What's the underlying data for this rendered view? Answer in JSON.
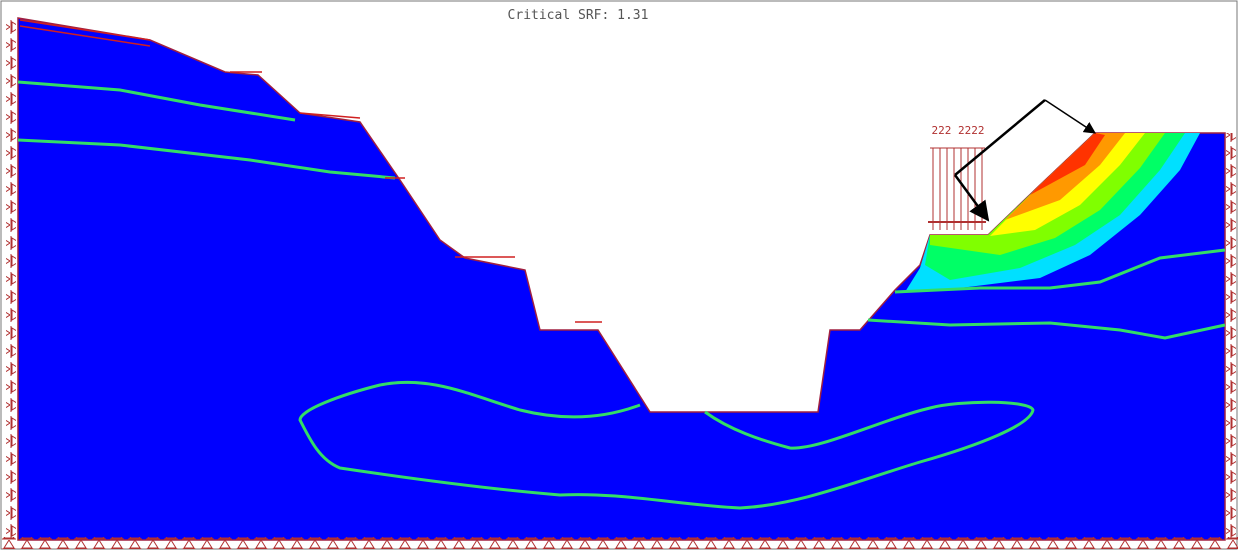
{
  "header": {
    "title": "Critical SRF: 1.31"
  },
  "load": {
    "label": "222 2222"
  }
}
